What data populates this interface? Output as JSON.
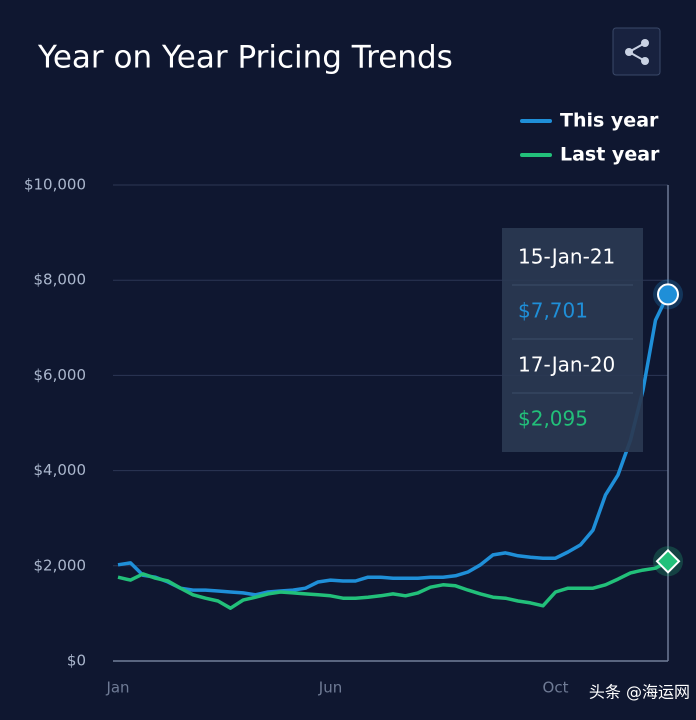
{
  "chart_data": {
    "type": "line",
    "title": "Year on Year Pricing Trends",
    "categories": [
      "Jan",
      null,
      null,
      null,
      null,
      null,
      null,
      null,
      null,
      null,
      null,
      null,
      null,
      null,
      null,
      null,
      null,
      "Jun",
      null,
      null,
      null,
      null,
      null,
      null,
      null,
      null,
      null,
      null,
      null,
      null,
      null,
      null,
      null,
      null,
      null,
      "Oct",
      null,
      null,
      null,
      null,
      null,
      null,
      null,
      null,
      null
    ],
    "series": [
      {
        "name": "This year",
        "color": "#1f8fd8",
        "values": [
          2020,
          2060,
          1800,
          1760,
          1660,
          1530,
          1490,
          1490,
          1470,
          1450,
          1430,
          1390,
          1450,
          1470,
          1490,
          1530,
          1660,
          1700,
          1680,
          1680,
          1760,
          1760,
          1740,
          1740,
          1740,
          1760,
          1760,
          1790,
          1870,
          2020,
          2230,
          2270,
          2210,
          2180,
          2160,
          2160,
          2290,
          2440,
          2750,
          3490,
          3910,
          4640,
          5690,
          7160,
          7701
        ]
      },
      {
        "name": "Last year",
        "color": "#22c07a",
        "values": [
          1760,
          1700,
          1830,
          1740,
          1680,
          1530,
          1390,
          1320,
          1260,
          1110,
          1280,
          1340,
          1410,
          1450,
          1430,
          1410,
          1390,
          1370,
          1320,
          1320,
          1340,
          1370,
          1410,
          1370,
          1430,
          1550,
          1600,
          1580,
          1490,
          1410,
          1340,
          1320,
          1260,
          1220,
          1160,
          1450,
          1530,
          1530,
          1530,
          1600,
          1720,
          1850,
          1910,
          1950,
          2095
        ]
      }
    ],
    "ylim": [
      0,
      10000
    ],
    "yticks": [
      {
        "value": 0,
        "label": "$0"
      },
      {
        "value": 2000,
        "label": "$2,000"
      },
      {
        "value": 4000,
        "label": "$4,000"
      },
      {
        "value": 6000,
        "label": "$6,000"
      },
      {
        "value": 8000,
        "label": "$8,000"
      },
      {
        "value": 10000,
        "label": "$10,000"
      }
    ],
    "grid": true,
    "legend": "top-right",
    "tooltip": [
      {
        "date": "15-Jan-21",
        "label": "$7,701"
      },
      {
        "date": "17-Jan-20",
        "label": "$2,095"
      }
    ],
    "watermark": "头条 @海运网"
  }
}
